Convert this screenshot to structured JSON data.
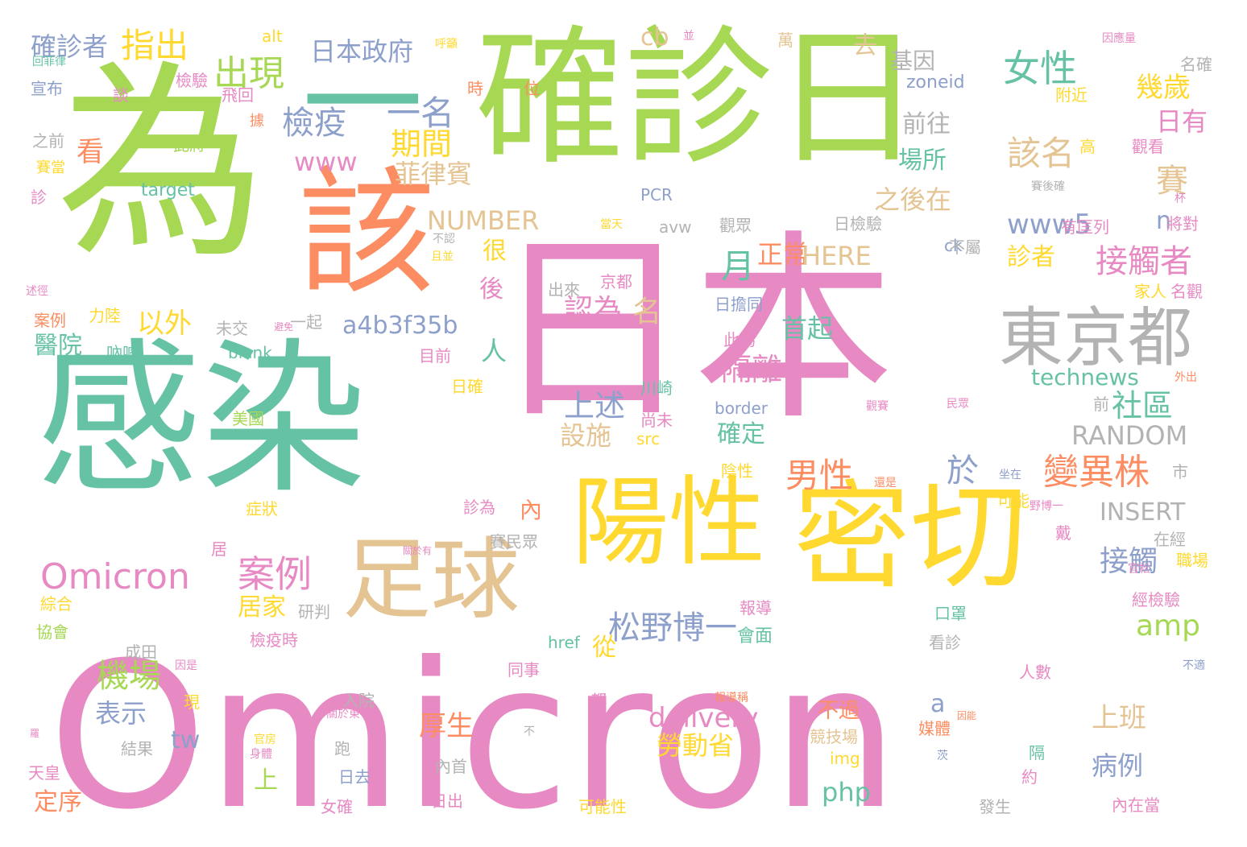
{
  "palette": {
    "green": "#a6d854",
    "teal": "#66c2a5",
    "pink": "#e78ac3",
    "yellow": "#ffd92f",
    "orange": "#fc8d62",
    "tan": "#e5c494",
    "blue": "#8da0cb",
    "gray": "#b3b3b3"
  },
  "words": [
    {
      "text": "Omicron",
      "color": "pink"
    },
    {
      "text": "日本",
      "color": "pink"
    },
    {
      "text": "確診日",
      "color": "green"
    },
    {
      "text": "為",
      "color": "green"
    },
    {
      "text": "一",
      "color": "teal"
    },
    {
      "text": "感染",
      "color": "teal"
    },
    {
      "text": "密切",
      "color": "yellow"
    },
    {
      "text": "陽性",
      "color": "yellow"
    },
    {
      "text": "該",
      "color": "orange"
    },
    {
      "text": "足球",
      "color": "tan"
    },
    {
      "text": "東京都",
      "color": "gray"
    },
    {
      "text": "Omicron",
      "color": "pink"
    },
    {
      "text": "案例",
      "color": "pink"
    },
    {
      "text": "松野博一",
      "color": "blue"
    },
    {
      "text": "變異株",
      "color": "orange"
    },
    {
      "text": "接觸者",
      "color": "pink"
    },
    {
      "text": "機場",
      "color": "green"
    },
    {
      "text": "女性",
      "color": "teal"
    },
    {
      "text": "男性",
      "color": "orange"
    },
    {
      "text": "檢疫",
      "color": "blue"
    },
    {
      "text": "一名",
      "color": "blue"
    },
    {
      "text": "出現",
      "color": "green"
    },
    {
      "text": "日本政府",
      "color": "blue"
    },
    {
      "text": "指出",
      "color": "yellow"
    },
    {
      "text": "確診者",
      "color": "blue"
    },
    {
      "text": "期間",
      "color": "yellow"
    },
    {
      "text": "幾歲",
      "color": "yellow"
    },
    {
      "text": "日有",
      "color": "pink"
    },
    {
      "text": "該名",
      "color": "tan"
    },
    {
      "text": "賽",
      "color": "tan"
    },
    {
      "text": "前往",
      "color": "gray"
    },
    {
      "text": "基因",
      "color": "gray"
    },
    {
      "text": "zoneid",
      "color": "blue"
    },
    {
      "text": "去",
      "color": "tan"
    },
    {
      "text": "cb",
      "color": "tan"
    },
    {
      "text": "www",
      "color": "pink"
    },
    {
      "text": "菲律賓",
      "color": "tan"
    },
    {
      "text": "看",
      "color": "orange"
    },
    {
      "text": "場所",
      "color": "teal"
    },
    {
      "text": "之後在",
      "color": "tan"
    },
    {
      "text": "www5",
      "color": "blue"
    },
    {
      "text": "n",
      "color": "blue"
    },
    {
      "text": "NUMBER",
      "color": "tan"
    },
    {
      "text": "月",
      "color": "teal"
    },
    {
      "text": "正常",
      "color": "orange"
    },
    {
      "text": "HERE",
      "color": "tan"
    },
    {
      "text": "很",
      "color": "yellow"
    },
    {
      "text": "診者",
      "color": "yellow"
    },
    {
      "text": "以外",
      "color": "yellow"
    },
    {
      "text": "認為",
      "color": "pink"
    },
    {
      "text": "名",
      "color": "tan"
    },
    {
      "text": "後",
      "color": "pink"
    },
    {
      "text": "a4b3f35b",
      "color": "blue"
    },
    {
      "text": "首起",
      "color": "teal"
    },
    {
      "text": "醫院",
      "color": "teal"
    },
    {
      "text": "人",
      "color": "teal"
    },
    {
      "text": "隔離",
      "color": "pink"
    },
    {
      "text": "technews",
      "color": "teal"
    },
    {
      "text": "上述",
      "color": "blue"
    },
    {
      "text": "社區",
      "color": "teal"
    },
    {
      "text": "RANDOM",
      "color": "gray"
    },
    {
      "text": "設施",
      "color": "tan"
    },
    {
      "text": "確定",
      "color": "teal"
    },
    {
      "text": "於",
      "color": "blue"
    },
    {
      "text": "INSERT",
      "color": "gray"
    },
    {
      "text": "接觸",
      "color": "blue"
    },
    {
      "text": "amp",
      "color": "green"
    },
    {
      "text": "居家",
      "color": "yellow"
    },
    {
      "text": "內",
      "color": "orange"
    },
    {
      "text": "從",
      "color": "yellow"
    },
    {
      "text": "表示",
      "color": "blue"
    },
    {
      "text": "delivery",
      "color": "pink"
    },
    {
      "text": "勞動省",
      "color": "yellow"
    },
    {
      "text": "上班",
      "color": "tan"
    },
    {
      "text": "tw",
      "color": "blue"
    },
    {
      "text": "厚生",
      "color": "orange"
    },
    {
      "text": "a",
      "color": "blue"
    },
    {
      "text": "不過",
      "color": "orange"
    },
    {
      "text": "病例",
      "color": "blue"
    },
    {
      "text": "上",
      "color": "green"
    },
    {
      "text": "php",
      "color": "teal"
    },
    {
      "text": "定序",
      "color": "orange"
    },
    {
      "text": "會面",
      "color": "teal"
    },
    {
      "text": "檢疫時",
      "color": "pink"
    },
    {
      "text": "成田",
      "color": "gray"
    },
    {
      "text": "研判",
      "color": "gray"
    },
    {
      "text": "綜合",
      "color": "yellow"
    },
    {
      "text": "協會",
      "color": "green"
    },
    {
      "text": "宣布",
      "color": "blue"
    },
    {
      "text": "之前",
      "color": "gray"
    },
    {
      "text": "賽當",
      "color": "yellow"
    },
    {
      "text": "診",
      "color": "pink"
    },
    {
      "text": "target",
      "color": "teal"
    },
    {
      "text": "alt",
      "color": "yellow"
    },
    {
      "text": "呼籲",
      "color": "yellow"
    },
    {
      "text": "回菲律",
      "color": "teal"
    },
    {
      "text": "談",
      "color": "pink"
    },
    {
      "text": "檢驗",
      "color": "pink"
    },
    {
      "text": "飛回",
      "color": "pink"
    },
    {
      "text": "時",
      "color": "orange"
    },
    {
      "text": "位",
      "color": "orange"
    },
    {
      "text": "此將",
      "color": "green"
    },
    {
      "text": "據",
      "color": "orange"
    },
    {
      "text": "案例",
      "color": "orange"
    },
    {
      "text": "力陸",
      "color": "yellow"
    },
    {
      "text": "述徑",
      "color": "pink"
    },
    {
      "text": "避免",
      "color": "pink"
    },
    {
      "text": "未交",
      "color": "gray"
    },
    {
      "text": "一起",
      "color": "gray"
    },
    {
      "text": "吶喊",
      "color": "teal"
    },
    {
      "text": "blank",
      "color": "teal"
    },
    {
      "text": "目前",
      "color": "pink"
    },
    {
      "text": "日確",
      "color": "yellow"
    },
    {
      "text": "美國",
      "color": "green"
    },
    {
      "text": "症狀",
      "color": "yellow"
    },
    {
      "text": "居",
      "color": "pink"
    },
    {
      "text": "關於有",
      "color": "pink"
    },
    {
      "text": "賽民眾",
      "color": "gray"
    },
    {
      "text": "診為",
      "color": "pink"
    },
    {
      "text": "現",
      "color": "yellow"
    },
    {
      "text": "入院",
      "color": "gray"
    },
    {
      "text": "關於東",
      "color": "pink"
    },
    {
      "text": "跑",
      "color": "gray"
    },
    {
      "text": "都",
      "color": "pink"
    },
    {
      "text": "結果",
      "color": "gray"
    },
    {
      "text": "天皇",
      "color": "pink"
    },
    {
      "text": "日去",
      "color": "blue"
    },
    {
      "text": "內首",
      "color": "gray"
    },
    {
      "text": "日出",
      "color": "pink"
    },
    {
      "text": "女確",
      "color": "pink"
    },
    {
      "text": "可能性",
      "color": "yellow"
    },
    {
      "text": "同事",
      "color": "pink"
    },
    {
      "text": "不",
      "color": "gray"
    },
    {
      "text": "官房",
      "color": "yellow"
    },
    {
      "text": "身體",
      "color": "pink"
    },
    {
      "text": "羅",
      "color": "pink"
    },
    {
      "text": "因是",
      "color": "pink"
    },
    {
      "text": "報導稱",
      "color": "orange"
    },
    {
      "text": "競技場",
      "color": "tan"
    },
    {
      "text": "img",
      "color": "yellow"
    },
    {
      "text": "媒體",
      "color": "orange"
    },
    {
      "text": "發生",
      "color": "gray"
    },
    {
      "text": "內在當",
      "color": "pink"
    },
    {
      "text": "隔",
      "color": "teal"
    },
    {
      "text": "約",
      "color": "pink"
    },
    {
      "text": "茨",
      "color": "blue"
    },
    {
      "text": "href",
      "color": "teal"
    },
    {
      "text": "看診",
      "color": "gray"
    },
    {
      "text": "報導",
      "color": "pink"
    },
    {
      "text": "經檢驗",
      "color": "pink"
    },
    {
      "text": "口罩",
      "color": "teal"
    },
    {
      "text": "官松",
      "color": "pink"
    },
    {
      "text": "職場",
      "color": "yellow"
    },
    {
      "text": "人數",
      "color": "pink"
    },
    {
      "text": "不適",
      "color": "blue"
    },
    {
      "text": "因能",
      "color": "orange"
    },
    {
      "text": "戴",
      "color": "pink"
    },
    {
      "text": "在經",
      "color": "gray"
    },
    {
      "text": "野博一",
      "color": "pink"
    },
    {
      "text": "可能",
      "color": "yellow"
    },
    {
      "text": "還是",
      "color": "orange"
    },
    {
      "text": "坐在",
      "color": "blue"
    },
    {
      "text": "市",
      "color": "gray"
    },
    {
      "text": "民眾",
      "color": "pink"
    },
    {
      "text": "外出",
      "color": "orange"
    },
    {
      "text": "前",
      "color": "gray"
    },
    {
      "text": "觀賽",
      "color": "pink"
    },
    {
      "text": "陰性",
      "color": "yellow"
    },
    {
      "text": "border",
      "color": "blue"
    },
    {
      "text": "src",
      "color": "yellow"
    },
    {
      "text": "尚未",
      "color": "pink"
    },
    {
      "text": "川崎",
      "color": "teal"
    },
    {
      "text": "此為",
      "color": "pink"
    },
    {
      "text": "日擔同",
      "color": "blue"
    },
    {
      "text": "出來",
      "color": "gray"
    },
    {
      "text": "京都",
      "color": "pink"
    },
    {
      "text": "日檢驗",
      "color": "gray"
    },
    {
      "text": "觀眾",
      "color": "gray"
    },
    {
      "text": "avw",
      "color": "gray"
    },
    {
      "text": "ck",
      "color": "blue"
    },
    {
      "text": "不屬",
      "color": "gray"
    },
    {
      "text": "家人",
      "color": "yellow"
    },
    {
      "text": "名觀",
      "color": "pink"
    },
    {
      "text": "有匡列",
      "color": "pink"
    },
    {
      "text": "將對",
      "color": "pink"
    },
    {
      "text": "當天",
      "color": "yellow"
    },
    {
      "text": "PCR",
      "color": "blue"
    },
    {
      "text": "不認",
      "color": "gray"
    },
    {
      "text": "且並",
      "color": "yellow"
    },
    {
      "text": "賽後確",
      "color": "gray"
    },
    {
      "text": "杯",
      "color": "pink"
    },
    {
      "text": "觀看",
      "color": "pink"
    },
    {
      "text": "高",
      "color": "yellow"
    },
    {
      "text": "附近",
      "color": "yellow"
    },
    {
      "text": "名確",
      "color": "gray"
    },
    {
      "text": "因應量",
      "color": "pink"
    },
    {
      "text": "萬",
      "color": "tan"
    },
    {
      "text": "並",
      "color": "pink"
    }
  ]
}
